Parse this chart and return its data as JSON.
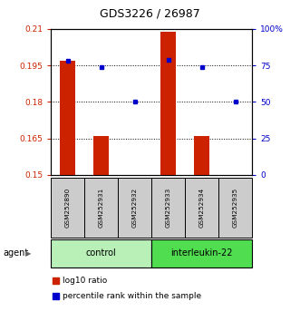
{
  "title": "GDS3226 / 26987",
  "samples": [
    "GSM252890",
    "GSM252931",
    "GSM252932",
    "GSM252933",
    "GSM252934",
    "GSM252935"
  ],
  "groups": [
    {
      "name": "control",
      "indices": [
        0,
        1,
        2
      ]
    },
    {
      "name": "interleukin-22",
      "indices": [
        3,
        4,
        5
      ]
    }
  ],
  "log10_values": [
    0.197,
    0.166,
    0.15,
    0.209,
    0.166,
    0.15
  ],
  "percentile_values": [
    78,
    74,
    50,
    79,
    74,
    50
  ],
  "ylim_left": [
    0.15,
    0.21
  ],
  "ylim_right": [
    0,
    100
  ],
  "yticks_left": [
    0.15,
    0.165,
    0.18,
    0.195,
    0.21
  ],
  "yticks_right": [
    0,
    25,
    50,
    75,
    100
  ],
  "ytick_labels_left": [
    "0.15",
    "0.165",
    "0.18",
    "0.195",
    "0.21"
  ],
  "ytick_labels_right": [
    "0",
    "25",
    "50",
    "75",
    "100%"
  ],
  "hgrid_values": [
    0.165,
    0.18,
    0.195
  ],
  "bar_color": "#cc2200",
  "dot_color": "#0000cc",
  "bar_width": 0.45,
  "group_label": "agent",
  "legend_red": "log10 ratio",
  "legend_blue": "percentile rank within the sample",
  "control_light_green": "#b8f0b8",
  "interleukin_green": "#50dd50",
  "cell_gray": "#cccccc"
}
